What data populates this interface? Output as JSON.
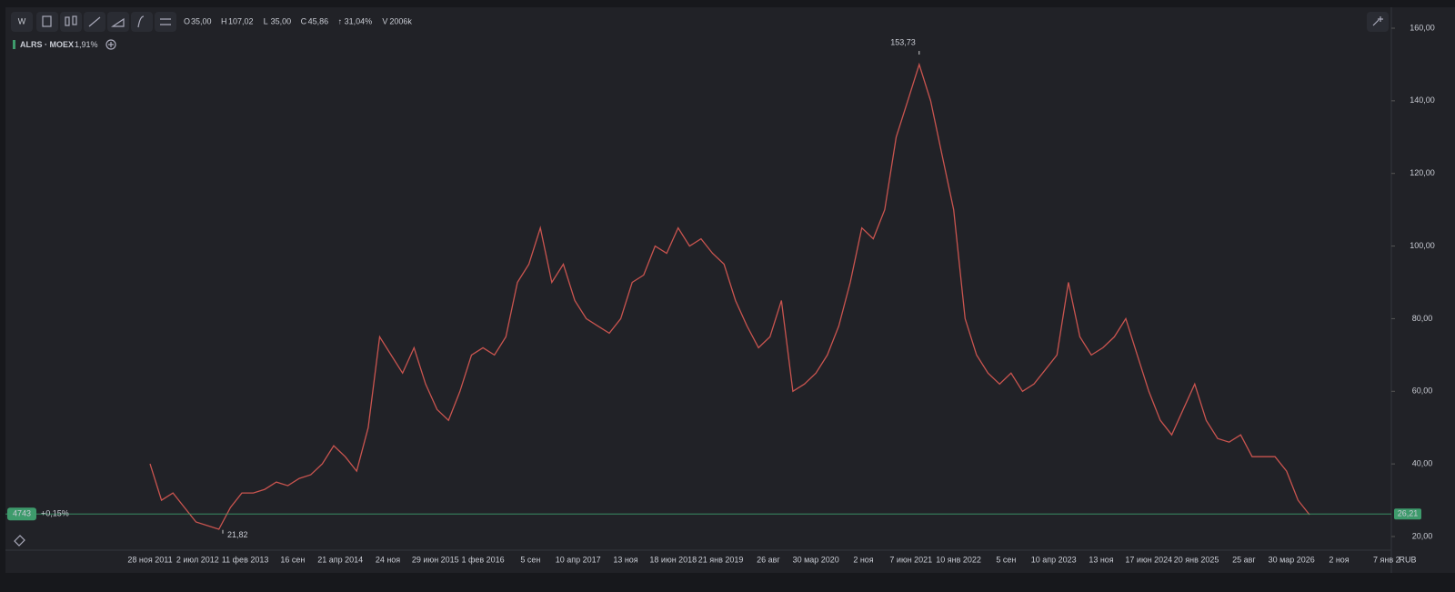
{
  "toolbar": {
    "interval": "W",
    "ohlc": [
      {
        "key": "O",
        "value": "35,00"
      },
      {
        "key": "H",
        "value": "107,02"
      },
      {
        "key": "L",
        "value": "35,00"
      },
      {
        "key": "C",
        "value": "45,86"
      }
    ],
    "change": "↑ 31,04%",
    "volume_key": "V",
    "volume": "2006k"
  },
  "legend": {
    "symbol": "ALRS · MOEX",
    "change": "1,91%"
  },
  "chart": {
    "ylim": [
      20,
      160
    ],
    "yticks": [
      {
        "value": 160,
        "label": "160,00"
      },
      {
        "value": 140,
        "label": "140,00"
      },
      {
        "value": 120,
        "label": "120,00"
      },
      {
        "value": 100,
        "label": "100,00"
      },
      {
        "value": 80,
        "label": "80,00"
      },
      {
        "value": 60,
        "label": "60,00"
      },
      {
        "value": 40,
        "label": "40,00"
      },
      {
        "value": 20,
        "label": "20,00"
      }
    ],
    "dates": [
      "28 ноя 2011",
      "2 июл 2012",
      "11 фев 2013",
      "16 сен",
      "21 апр 2014",
      "24 ноя",
      "29 июн 2015",
      "1 фев 2016",
      "5 сен",
      "10 апр 2017",
      "13 ноя",
      "18 июн 2018",
      "21 янв 2019",
      "26 авг",
      "30 мар 2020",
      "2 ноя",
      "7 июн 2021",
      "10 янв 2022",
      "5 сен",
      "10 апр 2023",
      "13 ноя",
      "17 июн 2024",
      "20 янв 2025",
      "25 авг",
      "30 мар 2026",
      "2 ноя",
      "7 янв 2"
    ],
    "currency": "RUB",
    "price": {
      "color": "#c9544f",
      "values": [
        40,
        30,
        32,
        28,
        24,
        23,
        22,
        28,
        32,
        32,
        33,
        35,
        34,
        36,
        37,
        40,
        45,
        42,
        38,
        50,
        75,
        70,
        65,
        72,
        62,
        55,
        52,
        60,
        70,
        72,
        70,
        75,
        90,
        95,
        105,
        90,
        95,
        85,
        80,
        78,
        76,
        80,
        90,
        92,
        100,
        98,
        105,
        100,
        102,
        98,
        95,
        85,
        78,
        72,
        75,
        85,
        60,
        62,
        65,
        70,
        78,
        90,
        105,
        102,
        110,
        130,
        140,
        150,
        140,
        125,
        110,
        80,
        70,
        65,
        62,
        65,
        60,
        62,
        66,
        70,
        90,
        75,
        70,
        72,
        75,
        80,
        70,
        60,
        52,
        48,
        55,
        62,
        52,
        47,
        46,
        48,
        42,
        42,
        42,
        38,
        30,
        26
      ]
    },
    "high": {
      "value": 153.73,
      "label": "153,73"
    },
    "low": {
      "value": 21.82,
      "label": "21,82"
    },
    "last": {
      "value": 26.21,
      "label": "26,21"
    },
    "counter": "4743",
    "last_change": "+0,15%"
  }
}
